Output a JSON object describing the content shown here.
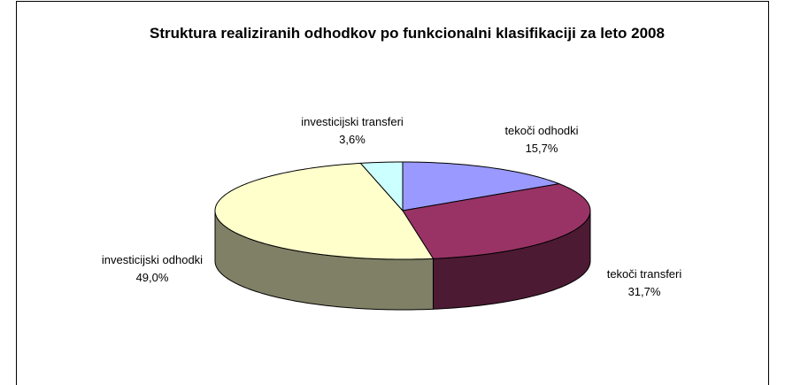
{
  "chart_data": {
    "type": "pie3d",
    "title": "Struktura realiziranih odhodkov po funkcionalni klasifikaciji za leto 2008",
    "categories": [
      "tekoči odhodki",
      "tekoči transferi",
      "investicijski odhodki",
      "investicijski transferi"
    ],
    "values": [
      15.7,
      31.7,
      49.0,
      3.6
    ],
    "value_labels": [
      "15,7%",
      "31,7%",
      "49,0%",
      "3,6%"
    ],
    "colors": [
      "#9999ff",
      "#993366",
      "#ffffcc",
      "#ccffff"
    ]
  }
}
